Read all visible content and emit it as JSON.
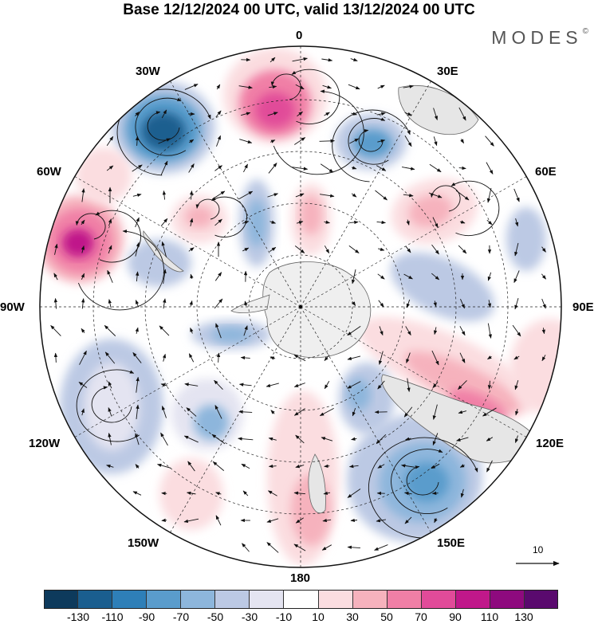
{
  "title": "Base 12/12/2024 00 UTC, valid 13/12/2024 00 UTC",
  "brand": "MODES",
  "brand_mark": "©",
  "longitude_labels": {
    "top": "0",
    "top_left": "30W",
    "top_right": "30E",
    "upper_left": "60W",
    "upper_right": "60E",
    "left": "90W",
    "right": "90E",
    "lower_left": "120W",
    "lower_right": "120E",
    "bottom_left": "150W",
    "bottom_right": "150E",
    "bottom": "180"
  },
  "reference_vector": {
    "label": "10"
  },
  "colorbar": {
    "ticks": [
      "-130",
      "-110",
      "-90",
      "-70",
      "-50",
      "-30",
      "-10",
      "10",
      "30",
      "50",
      "70",
      "90",
      "110",
      "130"
    ],
    "colors": [
      "#0d3a5c",
      "#1a5e8f",
      "#2e7fb8",
      "#5a9ccc",
      "#8db6dc",
      "#bcc9e4",
      "#e4e4f1",
      "#ffffff",
      "#fbdde0",
      "#f6b2bd",
      "#f07fa6",
      "#e14b99",
      "#c0188a",
      "#8e0a7e",
      "#5a0a6e"
    ]
  },
  "map_colors": {
    "land": "#e6e6e6",
    "antarctica": "#efefef",
    "grid": "#222222",
    "arrow": "#111111"
  }
}
